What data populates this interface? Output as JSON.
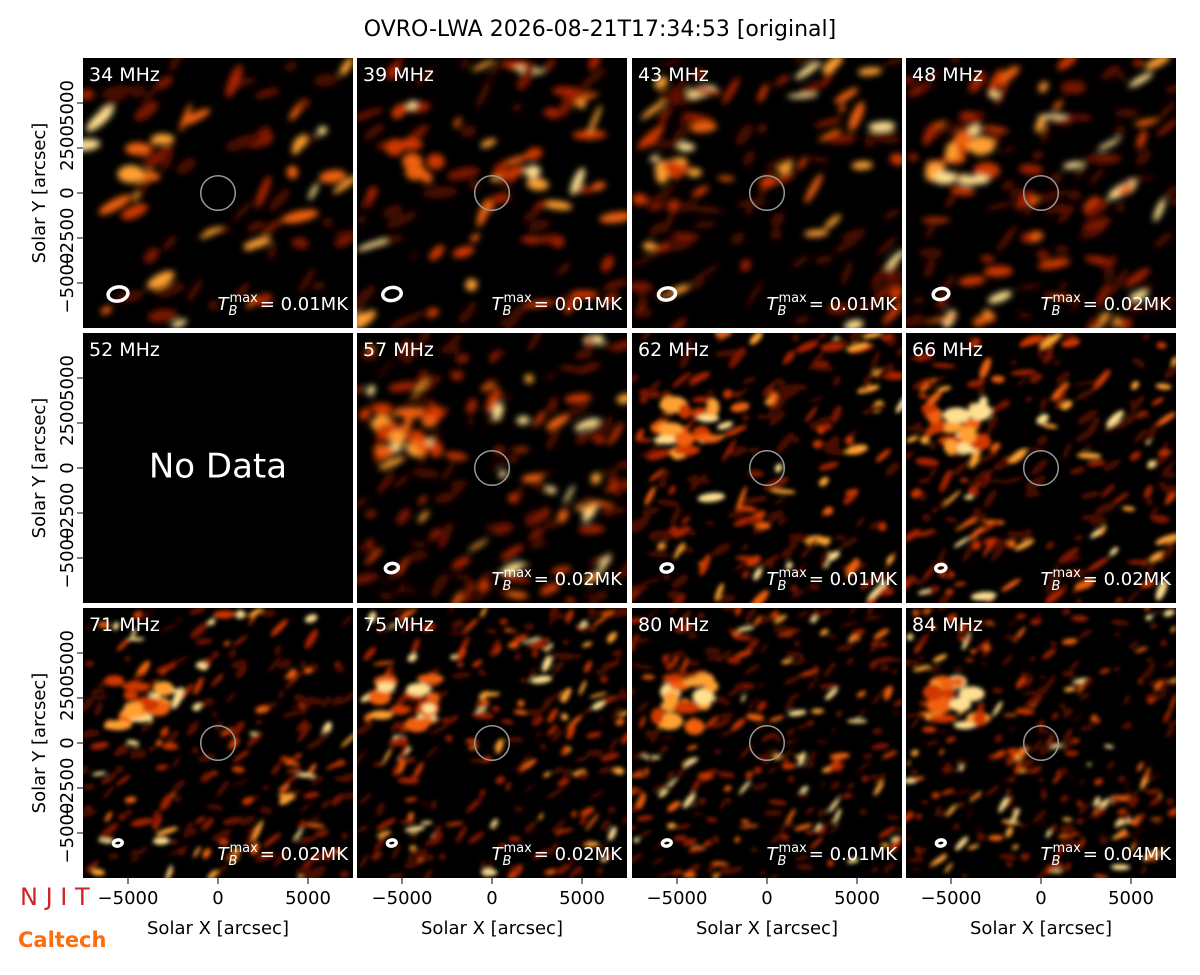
{
  "title": "OVRO-LWA 2026-08-21T17:34:53 [original]",
  "logos": [
    "N J I T",
    "Caltech"
  ],
  "chart_data": {
    "type": "image-grid",
    "xlabel": "Solar X [arcsec]",
    "ylabel": "Solar Y [arcsec]",
    "xlim": [
      -7500,
      7500
    ],
    "ylim": [
      -7500,
      7500
    ],
    "xticks": [
      {
        "value": -5000,
        "label": "−5000"
      },
      0,
      5000
    ],
    "yticks": [
      {
        "value": -5000,
        "label": "−5000"
      },
      {
        "value": -2500,
        "label": "−2500"
      },
      0,
      2500,
      5000
    ],
    "tb_symbol": "T",
    "tb_sub": "B",
    "tb_sup": "max",
    "panels": [
      {
        "label": "34 MHz",
        "tb_label": "= 0.01MK"
      },
      {
        "label": "39 MHz",
        "tb_label": "= 0.01MK"
      },
      {
        "label": "43 MHz",
        "tb_label": "= 0.01MK"
      },
      {
        "label": "48 MHz",
        "tb_label": "= 0.02MK"
      },
      {
        "label": "52 MHz",
        "no_data": "No Data"
      },
      {
        "label": "57 MHz",
        "tb_label": "= 0.02MK"
      },
      {
        "label": "62 MHz",
        "tb_label": "= 0.01MK"
      },
      {
        "label": "66 MHz",
        "tb_label": "= 0.02MK"
      },
      {
        "label": "71 MHz",
        "tb_label": "= 0.02MK"
      },
      {
        "label": "75 MHz",
        "tb_label": "= 0.02MK"
      },
      {
        "label": "80 MHz",
        "tb_label": "= 0.01MK"
      },
      {
        "label": "84 MHz",
        "tb_label": "= 0.04MK"
      }
    ]
  }
}
